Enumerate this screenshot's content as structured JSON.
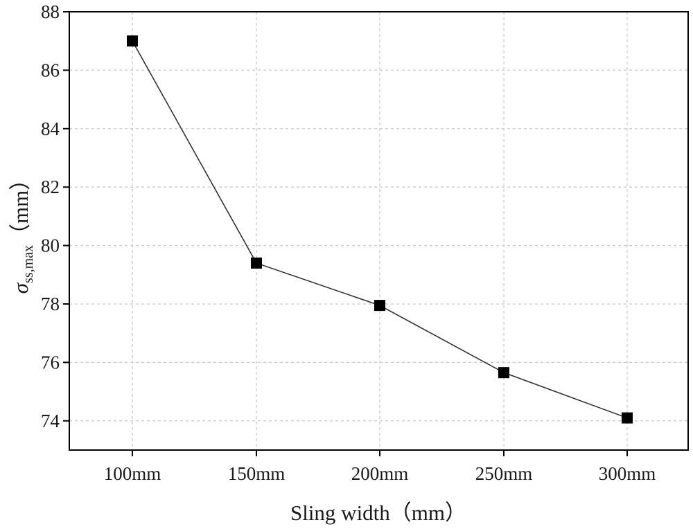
{
  "chart_data": {
    "type": "line",
    "title": "",
    "categories": [
      "100mm",
      "150mm",
      "200mm",
      "250mm",
      "300mm"
    ],
    "series": [
      {
        "name": "σss,max",
        "values": [
          87.0,
          79.4,
          77.95,
          75.65,
          74.1
        ]
      }
    ],
    "xlabel": "Sling width（mm）",
    "ylabel": {
      "symbol": "σ",
      "subscript": "ss,max",
      "unit": "（mm）"
    },
    "ylim": [
      73,
      88
    ],
    "yticks": [
      74,
      76,
      78,
      80,
      82,
      84,
      86,
      88
    ],
    "grid": true,
    "legend": "none",
    "colors": {
      "line": "#333333",
      "marker": "#000000",
      "grid": "#c8c8c8",
      "axis": "#000000"
    }
  }
}
